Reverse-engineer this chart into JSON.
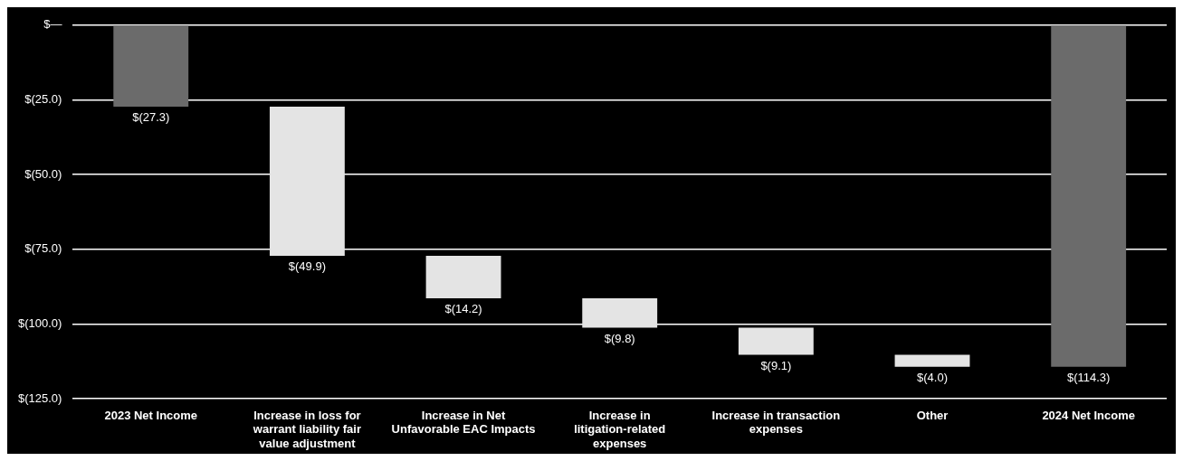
{
  "chart_data": {
    "type": "bar",
    "categories": [
      "2023 Net Income",
      "Increase in loss for warrant liability fair value adjustment",
      "Increase in Net Unfavorable EAC Impacts",
      "Increase in litigation-related expenses",
      "Increase in transaction expenses",
      "Other",
      "2024 Net Income"
    ],
    "values": [
      -27.3,
      -49.9,
      -14.2,
      -9.8,
      -9.1,
      -4.0,
      -114.3
    ],
    "base": [
      0,
      -27.3,
      -77.2,
      -91.4,
      -101.2,
      -110.3,
      0
    ],
    "colors": [
      "#6b6b6b",
      "#e4e4e4",
      "#e4e4e4",
      "#e4e4e4",
      "#e4e4e4",
      "#e4e4e4",
      "#6b6b6b"
    ],
    "value_labels": [
      "$(27.3)",
      "$(49.9)",
      "$(14.2)",
      "$(9.8)",
      "$(9.1)",
      "$(4.0)",
      "$(114.3)"
    ],
    "ylim": [
      -125,
      0
    ],
    "yticks": [
      {
        "value": 0,
        "label": "$—"
      },
      {
        "value": -25,
        "label": "$(25.0)"
      },
      {
        "value": -50,
        "label": "$(50.0)"
      },
      {
        "value": -75,
        "label": "$(75.0)"
      },
      {
        "value": -100,
        "label": "$(100.0)"
      },
      {
        "value": -125,
        "label": "$(125.0)"
      }
    ],
    "grid": "y",
    "legend": false
  }
}
